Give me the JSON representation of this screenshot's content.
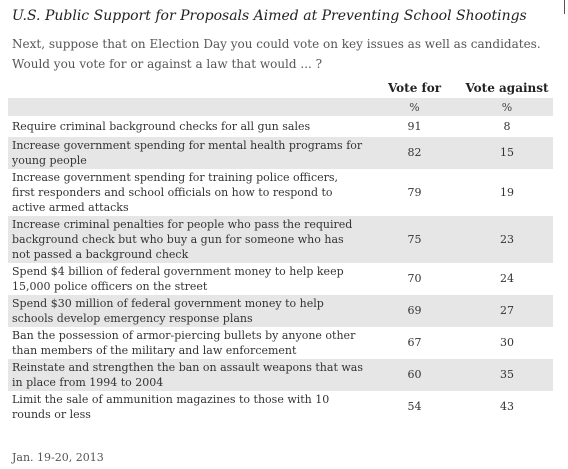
{
  "title": "U.S. Public Support for Proposals Aimed at Preventing School Shootings",
  "question": "Next, suppose that on Election Day you could vote on key issues as well as candidates. Would you vote for or against a law that would ... ?",
  "columns": {
    "for": "Vote for",
    "against": "Vote against",
    "unit": "%"
  },
  "chart_data": {
    "type": "table",
    "title": "U.S. Public Support for Proposals Aimed at Preventing School Shootings",
    "columns": [
      "Vote for",
      "Vote against"
    ],
    "unit": "%",
    "rows": [
      {
        "label": "Require criminal background checks for all gun sales",
        "for": "91",
        "against": "8"
      },
      {
        "label": "Increase government spending for mental health programs for young people",
        "for": "82",
        "against": "15"
      },
      {
        "label": "Increase government spending for training police officers, first responders and school officials on how to respond to active armed attacks",
        "for": "79",
        "against": "19"
      },
      {
        "label": "Increase criminal penalties for people who pass the required background check but who buy a gun for someone who has not passed a background check",
        "for": "75",
        "against": "23"
      },
      {
        "label": "Spend $4 billion of federal government money to help keep 15,000 police officers on the street",
        "for": "70",
        "against": "24"
      },
      {
        "label": "Spend $30 million of federal government money to help schools develop emergency response plans",
        "for": "69",
        "against": "27"
      },
      {
        "label": "Ban the possession of armor-piercing bullets by anyone other than members of the military and law enforcement",
        "for": "67",
        "against": "30"
      },
      {
        "label": "Reinstate and strengthen the ban on assault weapons that was in place from 1994 to 2004",
        "for": "60",
        "against": "35"
      },
      {
        "label": "Limit the sale of ammunition magazines to those with 10 rounds or less",
        "for": "54",
        "against": "43"
      }
    ]
  },
  "footnote": "Jan. 19-20, 2013"
}
